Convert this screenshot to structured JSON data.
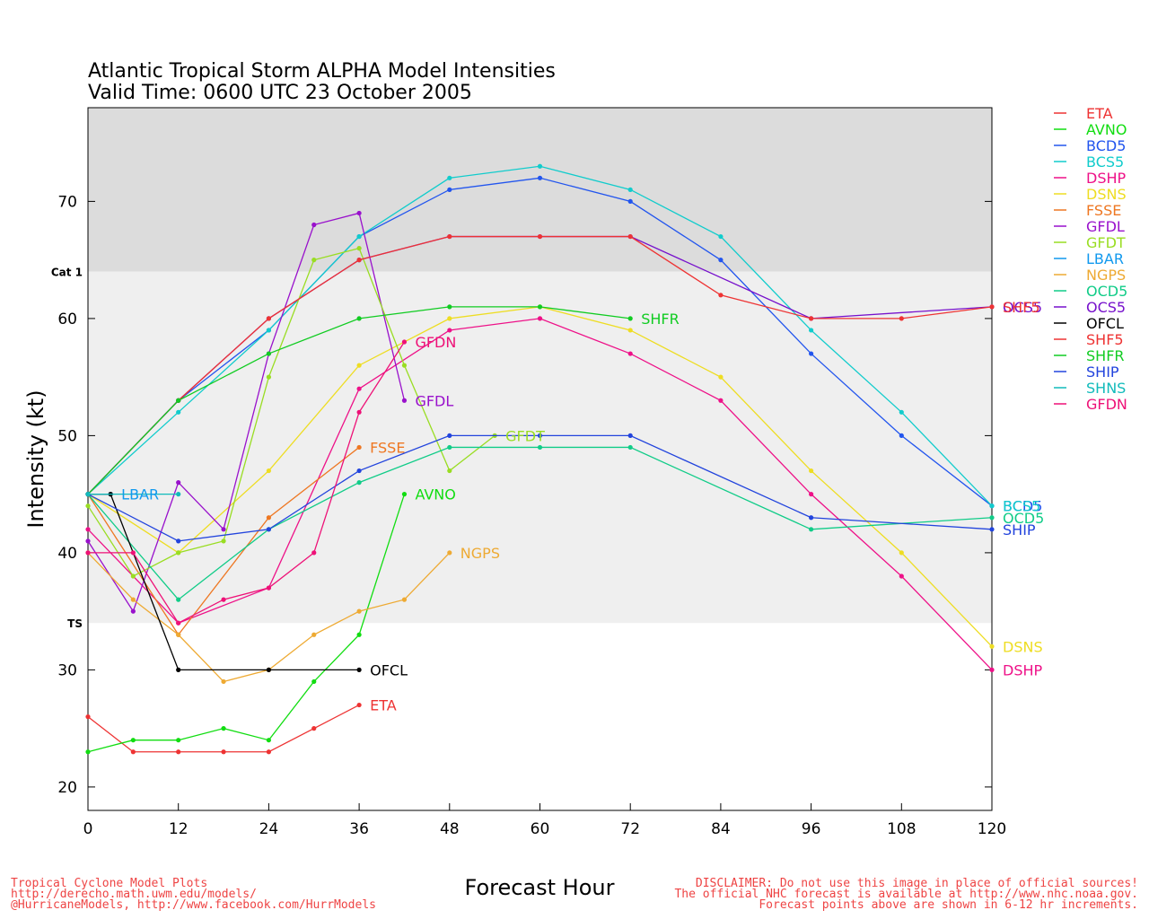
{
  "chart_data": {
    "type": "line",
    "title": "Atlantic Tropical Storm ALPHA Model Intensities",
    "subtitle": "Valid Time: 0600 UTC 23 October 2005",
    "xlabel": "Forecast Hour",
    "ylabel": "Intensity (kt)",
    "xlim": [
      0,
      120
    ],
    "ylim": [
      18,
      78
    ],
    "xticks": [
      0,
      12,
      24,
      36,
      48,
      60,
      72,
      84,
      96,
      108,
      120
    ],
    "yticks": [
      20,
      30,
      40,
      50,
      60,
      70
    ],
    "bands": [
      {
        "label": "Cat 1",
        "from": 64,
        "to": 78,
        "color": "#dcdcdc"
      },
      {
        "label": "TS",
        "from": 34,
        "to": 64,
        "color": "#efefef"
      }
    ],
    "legend_placement": "right",
    "series": [
      {
        "name": "ETA",
        "color": "#ee3333",
        "x": [
          0,
          6,
          12,
          18,
          24,
          30,
          36
        ],
        "y": [
          26,
          23,
          23,
          23,
          23,
          25,
          27
        ]
      },
      {
        "name": "AVNO",
        "color": "#11dd11",
        "x": [
          0,
          6,
          12,
          18,
          24,
          30,
          36,
          42
        ],
        "y": [
          23,
          24,
          24,
          25,
          24,
          29,
          33,
          45
        ]
      },
      {
        "name": "BCD5",
        "color": "#2255ee",
        "x": [
          0,
          12,
          24,
          36,
          48,
          60,
          72,
          84,
          96,
          108,
          120
        ],
        "y": [
          45,
          53,
          59,
          67,
          71,
          72,
          70,
          65,
          57,
          50,
          44
        ]
      },
      {
        "name": "BCS5",
        "color": "#11cccc",
        "x": [
          0,
          12,
          24,
          36,
          48,
          60,
          72,
          84,
          96,
          108,
          120
        ],
        "y": [
          45,
          52,
          59,
          67,
          72,
          73,
          71,
          67,
          59,
          52,
          44
        ]
      },
      {
        "name": "DSHP",
        "color": "#ee1188",
        "x": [
          0,
          12,
          24,
          36,
          48,
          60,
          72,
          84,
          96,
          108,
          120
        ],
        "y": [
          42,
          34,
          37,
          54,
          59,
          60,
          57,
          53,
          45,
          38,
          30
        ]
      },
      {
        "name": "DSNS",
        "color": "#eedd22",
        "x": [
          0,
          12,
          24,
          36,
          48,
          60,
          72,
          84,
          96,
          108,
          120
        ],
        "y": [
          45,
          40,
          47,
          56,
          60,
          61,
          59,
          55,
          47,
          40,
          32
        ]
      },
      {
        "name": "FSSE",
        "color": "#ee7722",
        "x": [
          0,
          12,
          24,
          36
        ],
        "y": [
          45,
          33,
          43,
          49
        ]
      },
      {
        "name": "GFDL",
        "color": "#9911cc",
        "x": [
          0,
          6,
          12,
          18,
          24,
          30,
          36,
          42
        ],
        "y": [
          41,
          35,
          46,
          42,
          57,
          68,
          69,
          53
        ]
      },
      {
        "name": "GFDT",
        "color": "#99dd22",
        "x": [
          0,
          6,
          12,
          18,
          24,
          30,
          36,
          42,
          48,
          54
        ],
        "y": [
          44,
          38,
          40,
          41,
          55,
          65,
          66,
          56,
          47,
          50
        ]
      },
      {
        "name": "LBAR",
        "color": "#1199ee",
        "x": [
          0,
          3
        ],
        "y": [
          45,
          45
        ]
      },
      {
        "name": "NGPS",
        "color": "#eeaa33",
        "x": [
          0,
          6,
          12,
          18,
          24,
          30,
          36,
          42,
          48
        ],
        "y": [
          40,
          36,
          33,
          29,
          30,
          33,
          35,
          36,
          40
        ]
      },
      {
        "name": "OCD5",
        "color": "#11cc88",
        "x": [
          0,
          12,
          24,
          36,
          48,
          60,
          72,
          96,
          120
        ],
        "y": [
          45,
          36,
          42,
          46,
          49,
          49,
          49,
          42,
          43
        ]
      },
      {
        "name": "OCS5",
        "color": "#7711cc",
        "x": [
          0,
          12,
          24,
          36,
          48,
          60,
          72,
          96,
          120
        ],
        "y": [
          45,
          53,
          60,
          65,
          67,
          67,
          67,
          60,
          61
        ]
      },
      {
        "name": "OFCL",
        "color": "#000000",
        "x": [
          0,
          3,
          12,
          24,
          36
        ],
        "y": [
          45,
          45,
          30,
          30,
          30
        ]
      },
      {
        "name": "SHF5",
        "color": "#ee3333",
        "x": [
          0,
          12,
          24,
          36,
          48,
          60,
          72,
          84,
          96,
          108,
          120
        ],
        "y": [
          45,
          53,
          60,
          65,
          67,
          67,
          67,
          62,
          60,
          60,
          61
        ]
      },
      {
        "name": "SHFR",
        "color": "#11cc22",
        "x": [
          0,
          12,
          24,
          36,
          48,
          60,
          72
        ],
        "y": [
          45,
          53,
          57,
          60,
          61,
          61,
          60
        ]
      },
      {
        "name": "SHIP",
        "color": "#2244dd",
        "x": [
          0,
          12,
          24,
          36,
          48,
          60,
          72,
          96,
          120
        ],
        "y": [
          45,
          41,
          42,
          47,
          50,
          50,
          50,
          43,
          42
        ]
      },
      {
        "name": "SHNS",
        "color": "#11bbbb",
        "x": [
          0,
          12
        ],
        "y": [
          45,
          45
        ]
      },
      {
        "name": "GFDN",
        "color": "#ee1177",
        "x": [
          0,
          6,
          12,
          18,
          24,
          30,
          36,
          42
        ],
        "y": [
          40,
          40,
          34,
          36,
          37,
          40,
          52,
          58
        ]
      }
    ],
    "end_labels": [
      {
        "text": "ETA",
        "series": "ETA"
      },
      {
        "text": "AVNO",
        "series": "AVNO"
      },
      {
        "text": "NGPS",
        "series": "NGPS"
      },
      {
        "text": "OFCL",
        "series": "OFCL"
      },
      {
        "text": "FSSE",
        "series": "FSSE"
      },
      {
        "text": "GFDL",
        "series": "GFDL"
      },
      {
        "text": "GFDN",
        "series": "GFDN"
      },
      {
        "text": "GFDT",
        "series": "GFDT"
      },
      {
        "text": "SHFR",
        "series": "SHFR"
      },
      {
        "text": "LBAR",
        "series": "LBAR"
      },
      {
        "text": "DSNS",
        "series": "DSNS"
      },
      {
        "text": "DSHP",
        "series": "DSHP"
      },
      {
        "text": "SHIP",
        "series": "SHIP"
      },
      {
        "text": "OCD5",
        "series": "OCD5"
      },
      {
        "text": "BCD5",
        "series": "BCD5"
      },
      {
        "text": "BCS5",
        "series": "BCS5"
      },
      {
        "text": "OCS5",
        "series": "OCS5"
      },
      {
        "text": "SHF5",
        "series": "SHF5"
      }
    ]
  },
  "footer": {
    "left": [
      "Tropical Cyclone Model Plots",
      "http://derecho.math.uwm.edu/models/",
      "@HurricaneModels, http://www.facebook.com/HurrModels"
    ],
    "right": [
      "DISCLAIMER: Do not use this image in place of official sources!",
      "The official NHC forecast is available at http://www.nhc.noaa.gov.",
      "Forecast points above are shown in 6-12 hr increments."
    ]
  }
}
